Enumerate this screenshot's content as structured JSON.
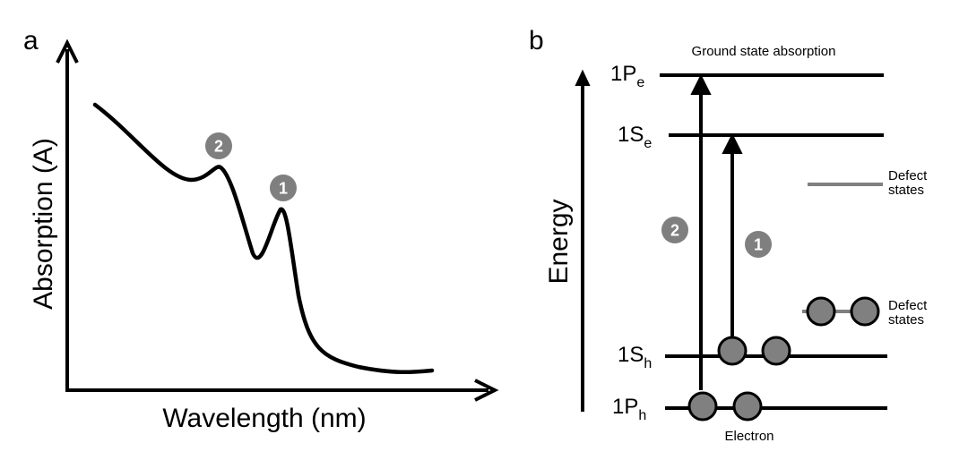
{
  "panel_a": {
    "label": "a",
    "y_axis_title": "Absorption (A)",
    "x_axis_title": "Wavelength (nm)",
    "peak_markers": [
      "2",
      "1"
    ]
  },
  "panel_b": {
    "label": "b",
    "y_axis_title": "Energy",
    "caption_top": "Ground state absorption",
    "caption_bottom": "Electron",
    "levels": {
      "p_e": {
        "main": "1P",
        "sub": "e"
      },
      "s_e": {
        "main": "1S",
        "sub": "e"
      },
      "s_h": {
        "main": "1S",
        "sub": "h"
      },
      "p_h": {
        "main": "1P",
        "sub": "h"
      }
    },
    "transition_markers": [
      "2",
      "1"
    ],
    "defect_upper": [
      "Defect",
      "states"
    ],
    "defect_lower": [
      "Defect",
      "states"
    ]
  },
  "colors": {
    "line": "#000000",
    "marker": "#7f7f7f",
    "defect_line": "#808080",
    "electron_fill": "#808080"
  }
}
